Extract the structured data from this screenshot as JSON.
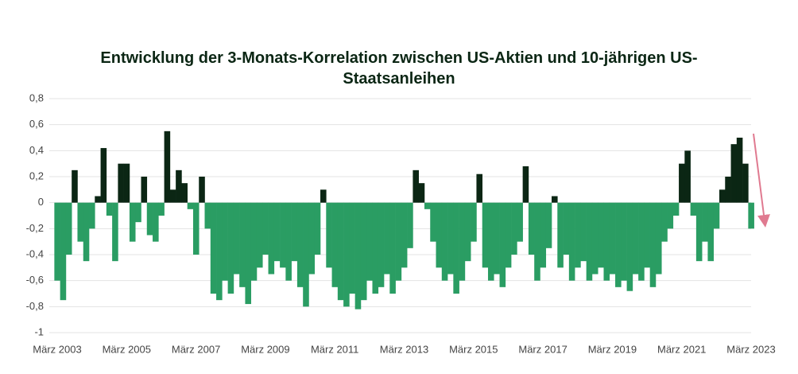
{
  "chart_data": {
    "type": "bar",
    "title": "Entwicklung der 3-Monats-Korrelation zwischen US-Aktien und 10-jährigen US-Staatsanleihen",
    "categories": [
      "März 2003",
      null,
      null,
      null,
      null,
      null,
      null,
      null,
      null,
      null,
      null,
      null,
      "März 2005",
      null,
      null,
      null,
      null,
      null,
      null,
      null,
      null,
      null,
      null,
      null,
      "März 2007",
      null,
      null,
      null,
      null,
      null,
      null,
      null,
      null,
      null,
      null,
      null,
      "März 2009",
      null,
      null,
      null,
      null,
      null,
      null,
      null,
      null,
      null,
      null,
      null,
      "März 2011",
      null,
      null,
      null,
      null,
      null,
      null,
      null,
      null,
      null,
      null,
      null,
      "März 2013",
      null,
      null,
      null,
      null,
      null,
      null,
      null,
      null,
      null,
      null,
      null,
      "März 2015",
      null,
      null,
      null,
      null,
      null,
      null,
      null,
      null,
      null,
      null,
      null,
      "März 2017",
      null,
      null,
      null,
      null,
      null,
      null,
      null,
      null,
      null,
      null,
      null,
      "März 2019",
      null,
      null,
      null,
      null,
      null,
      null,
      null,
      null,
      null,
      null,
      null,
      "März 2021",
      null,
      null,
      null,
      null,
      null,
      null,
      null,
      null,
      null,
      null,
      null,
      "März 2023"
    ],
    "values": [
      -0.6,
      -0.75,
      -0.4,
      0.25,
      -0.3,
      -0.45,
      -0.2,
      0.05,
      0.42,
      -0.1,
      -0.45,
      0.3,
      0.3,
      -0.3,
      -0.15,
      0.2,
      -0.25,
      -0.3,
      -0.1,
      0.55,
      0.1,
      0.25,
      0.15,
      -0.05,
      -0.4,
      0.2,
      -0.2,
      -0.7,
      -0.75,
      -0.6,
      -0.7,
      -0.55,
      -0.65,
      -0.78,
      -0.6,
      -0.5,
      -0.4,
      -0.55,
      -0.45,
      -0.5,
      -0.6,
      -0.45,
      -0.65,
      -0.8,
      -0.55,
      -0.4,
      0.1,
      -0.5,
      -0.65,
      -0.75,
      -0.8,
      -0.7,
      -0.82,
      -0.75,
      -0.6,
      -0.7,
      -0.65,
      -0.55,
      -0.7,
      -0.6,
      -0.5,
      -0.35,
      0.25,
      0.15,
      -0.05,
      -0.3,
      -0.5,
      -0.6,
      -0.55,
      -0.7,
      -0.6,
      -0.45,
      -0.3,
      0.22,
      -0.5,
      -0.6,
      -0.55,
      -0.65,
      -0.5,
      -0.4,
      -0.3,
      0.28,
      -0.4,
      -0.6,
      -0.5,
      -0.35,
      0.05,
      -0.5,
      -0.4,
      -0.6,
      -0.5,
      -0.45,
      -0.6,
      -0.55,
      -0.5,
      -0.6,
      -0.55,
      -0.65,
      -0.6,
      -0.68,
      -0.55,
      -0.6,
      -0.5,
      -0.65,
      -0.55,
      -0.3,
      -0.2,
      -0.1,
      0.3,
      0.4,
      -0.1,
      -0.45,
      -0.3,
      -0.45,
      -0.2,
      0.1,
      0.2,
      0.45,
      0.5,
      0.3,
      -0.2
    ],
    "colors": {
      "positive": "#0b2614",
      "negative": "#2a9d63"
    },
    "ylim": [
      -1,
      0.8
    ],
    "yticks": [
      {
        "value": -1,
        "label": "-1"
      },
      {
        "value": -0.8,
        "label": "-0,8"
      },
      {
        "value": -0.6,
        "label": "-0,6"
      },
      {
        "value": -0.4,
        "label": "-0,4"
      },
      {
        "value": -0.2,
        "label": "-0,2"
      },
      0,
      {
        "value": 0.2,
        "label": "0,2"
      },
      {
        "value": 0.4,
        "label": "0,4"
      },
      {
        "value": 0.6,
        "label": "0,6"
      },
      {
        "value": 0.8,
        "label": "0,8"
      }
    ],
    "grid": true
  }
}
